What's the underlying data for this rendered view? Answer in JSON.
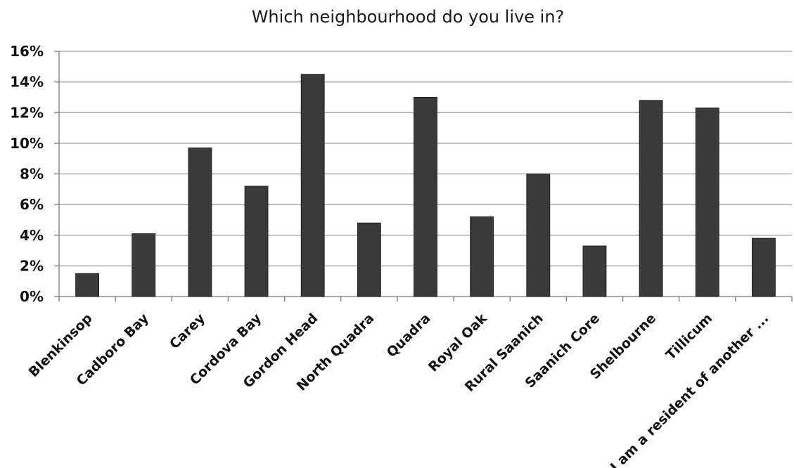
{
  "chart_data": {
    "type": "bar",
    "title": "Which neighbourhood do you live in?",
    "xlabel": "",
    "ylabel": "",
    "categories": [
      "Blenkinsop",
      "Cadboro Bay",
      "Carey",
      "Cordova Bay",
      "Gordon Head",
      "North Quadra",
      "Quadra",
      "Royal Oak",
      "Rural Saanich",
      "Saanich Core",
      "Shelbourne",
      "Tillicum",
      "I am a resident of another ..."
    ],
    "values": [
      1.5,
      4.1,
      9.7,
      7.2,
      14.5,
      4.8,
      13.0,
      5.2,
      8.0,
      3.3,
      12.8,
      12.3,
      3.8
    ],
    "yticks": [
      "0%",
      "2%",
      "4%",
      "6%",
      "8%",
      "10%",
      "12%",
      "14%",
      "16%"
    ],
    "ylim": [
      0,
      16
    ],
    "grid": true,
    "legend": "none",
    "bar_color": "#3a3a3a"
  }
}
